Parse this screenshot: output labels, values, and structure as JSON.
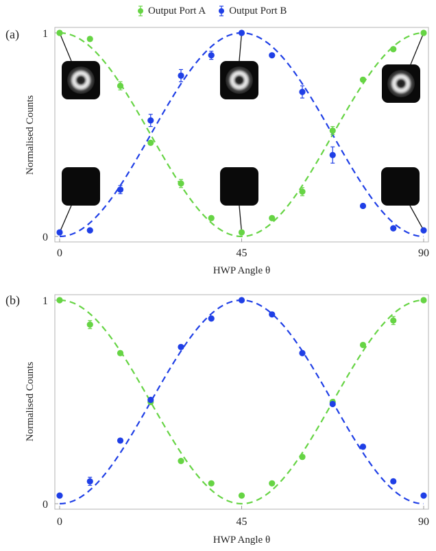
{
  "legend": {
    "series_a_label": "Output Port A",
    "series_b_label": "Output Port B"
  },
  "colors": {
    "port_a": "#66d444",
    "port_b": "#1f3fe6",
    "frame": "#b3b3b3"
  },
  "chart_data": [
    {
      "panel_label": "(a)",
      "type": "scatter",
      "xlabel": "HWP Angle θ",
      "ylabel": "Normalised Counts",
      "xlim": [
        0,
        90
      ],
      "ylim": [
        0,
        1
      ],
      "xticks": [
        "0",
        "45",
        "90"
      ],
      "yticks": [
        "0",
        "1"
      ],
      "fit": "cos² / sin² dashed fits",
      "insets": "beam-profile images: donut (bright) at port A/B maxima, dark at minima",
      "series": [
        {
          "name": "Output Port A",
          "x": [
            0,
            7.5,
            15,
            22.5,
            30,
            37.5,
            45,
            52.5,
            60,
            67.5,
            75,
            82.5,
            90
          ],
          "y": [
            1.0,
            0.97,
            0.74,
            0.46,
            0.26,
            0.09,
            0.02,
            0.09,
            0.22,
            0.52,
            0.77,
            0.92,
            1.0
          ],
          "err": [
            0.01,
            0.01,
            0.02,
            0.01,
            0.02,
            0.01,
            0.01,
            0.01,
            0.02,
            0.02,
            0.01,
            0.01,
            0.01
          ]
        },
        {
          "name": "Output Port B",
          "x": [
            0,
            7.5,
            15,
            22.5,
            30,
            37.5,
            45,
            52.5,
            60,
            67.5,
            75,
            82.5,
            90
          ],
          "y": [
            0.02,
            0.03,
            0.23,
            0.57,
            0.79,
            0.89,
            1.0,
            0.89,
            0.71,
            0.4,
            0.15,
            0.04,
            0.03
          ],
          "err": [
            0.01,
            0.01,
            0.02,
            0.03,
            0.03,
            0.02,
            0.01,
            0.01,
            0.03,
            0.04,
            0.01,
            0.01,
            0.01
          ]
        }
      ]
    },
    {
      "panel_label": "(b)",
      "type": "scatter",
      "xlabel": "HWP Angle θ",
      "ylabel": "Normalised Counts",
      "xlim": [
        0,
        90
      ],
      "ylim": [
        0,
        1
      ],
      "xticks": [
        "0",
        "45",
        "90"
      ],
      "yticks": [
        "0",
        "1"
      ],
      "fit": "cos² / sin² dashed fits",
      "series": [
        {
          "name": "Output Port A",
          "x": [
            0,
            7.5,
            15,
            22.5,
            30,
            37.5,
            45,
            52.5,
            60,
            67.5,
            75,
            82.5,
            90
          ],
          "y": [
            1.0,
            0.88,
            0.74,
            0.5,
            0.21,
            0.1,
            0.04,
            0.1,
            0.23,
            0.5,
            0.78,
            0.9,
            1.0
          ],
          "err": [
            0.01,
            0.02,
            0.01,
            0.01,
            0.01,
            0.01,
            0.01,
            0.01,
            0.01,
            0.01,
            0.01,
            0.02,
            0.01
          ]
        },
        {
          "name": "Output Port B",
          "x": [
            0,
            7.5,
            15,
            22.5,
            30,
            37.5,
            45,
            52.5,
            60,
            67.5,
            75,
            82.5,
            90
          ],
          "y": [
            0.04,
            0.11,
            0.31,
            0.51,
            0.77,
            0.91,
            1.0,
            0.93,
            0.74,
            0.49,
            0.28,
            0.11,
            0.04
          ],
          "err": [
            0.01,
            0.02,
            0.01,
            0.01,
            0.01,
            0.01,
            0.01,
            0.01,
            0.01,
            0.01,
            0.01,
            0.01,
            0.01
          ]
        }
      ]
    }
  ]
}
